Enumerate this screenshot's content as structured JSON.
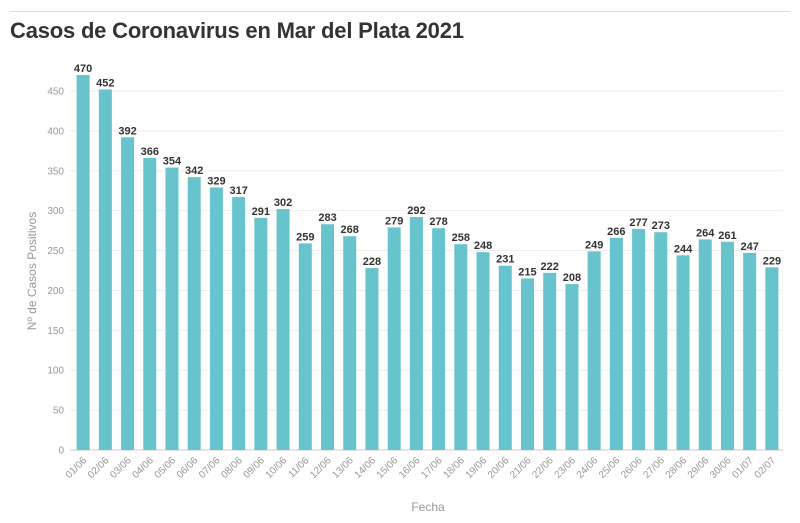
{
  "chart_data": {
    "type": "bar",
    "title": "Casos de Coronavirus en Mar del Plata 2021",
    "xlabel": "Fecha",
    "ylabel": "Nº de Casos Positivos",
    "ylim": [
      0,
      470
    ],
    "yticks": [
      0,
      50,
      100,
      150,
      200,
      250,
      300,
      350,
      400,
      450
    ],
    "grid": true,
    "color": "#67c4cc",
    "categories": [
      "01/06",
      "02/06",
      "03/06",
      "04/06",
      "05/06",
      "06/06",
      "07/06",
      "08/06",
      "09/06",
      "10/06",
      "11/06",
      "12/06",
      "13/06",
      "14/06",
      "15/06",
      "16/06",
      "17/06",
      "18/06",
      "19/06",
      "20/06",
      "21/06",
      "22/06",
      "23/06",
      "24/06",
      "25/06",
      "26/06",
      "27/06",
      "28/06",
      "29/06",
      "30/06",
      "01/07",
      "02/07"
    ],
    "values": [
      470,
      452,
      392,
      366,
      354,
      342,
      329,
      317,
      291,
      302,
      259,
      283,
      268,
      228,
      279,
      292,
      278,
      258,
      248,
      231,
      215,
      222,
      208,
      249,
      266,
      277,
      273,
      244,
      264,
      261,
      247,
      229
    ]
  }
}
